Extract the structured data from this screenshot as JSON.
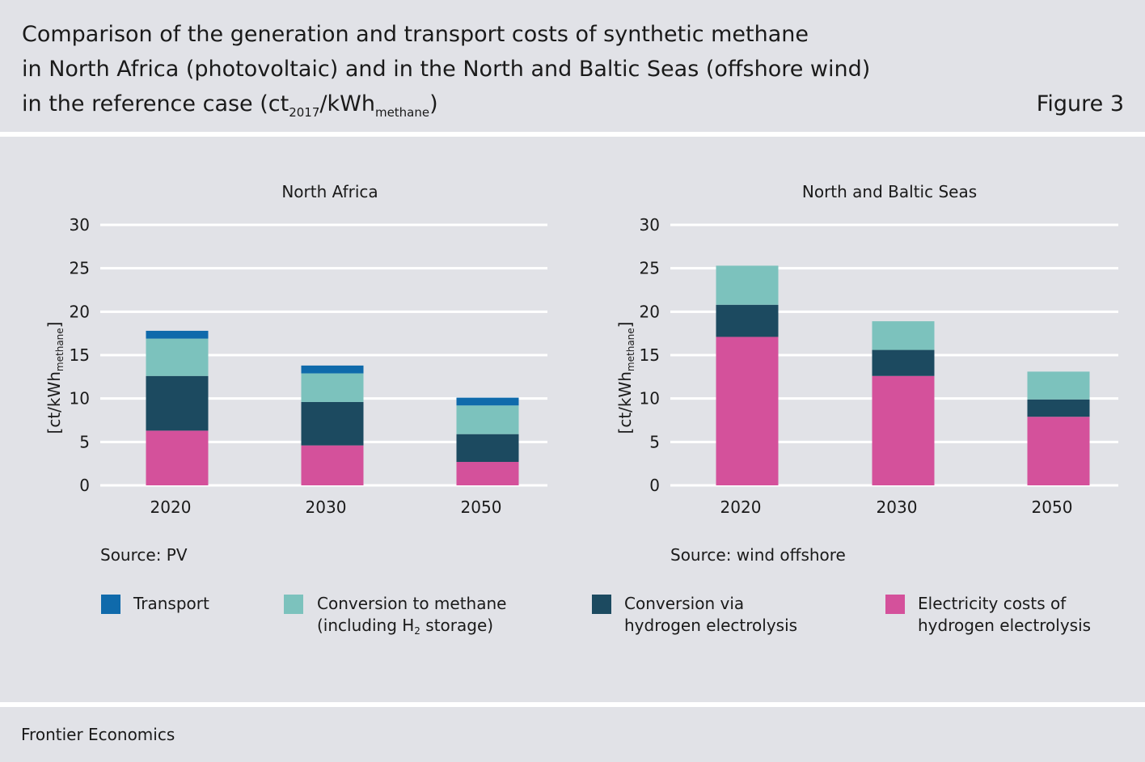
{
  "header": {
    "title_line1": "Comparison of the generation and transport costs of synthetic methane",
    "title_line2": "in North Africa (photovoltaic) and in the North and Baltic Seas (offshore wind)",
    "title_line3_pre": "in the reference case (ct",
    "title_line3_sub1": "2017",
    "title_line3_mid": "/kWh",
    "title_line3_sub2": "methane",
    "title_line3_post": ")",
    "figure_label": "Figure 3"
  },
  "colors": {
    "transport": "#0f6aab",
    "conversion_methane": "#7cc2bd",
    "conversion_hydrogen": "#1c4a60",
    "electricity": "#d4519b",
    "background": "#e1e2e7",
    "gridline": "#ffffff"
  },
  "chart_data": [
    {
      "type": "bar",
      "stacked": true,
      "title": "North Africa",
      "ylabel_main": "[ct/kWh",
      "ylabel_sub": "methane",
      "ylabel_end": "]",
      "ylim": [
        0,
        30
      ],
      "yticks": [
        0,
        5,
        10,
        15,
        20,
        25,
        30
      ],
      "categories": [
        "2020",
        "2030",
        "2050"
      ],
      "source": "Source: PV",
      "series": [
        {
          "name": "Electricity costs of hydrogen electrolysis",
          "key": "electricity",
          "values": [
            6.3,
            4.6,
            2.7
          ]
        },
        {
          "name": "Conversion via hydrogen electrolysis",
          "key": "conversion_hydrogen",
          "values": [
            6.3,
            5.0,
            3.2
          ]
        },
        {
          "name": "Conversion to methane (including H2 storage)",
          "key": "conversion_methane",
          "values": [
            4.3,
            3.3,
            3.3
          ]
        },
        {
          "name": "Transport",
          "key": "transport",
          "values": [
            0.9,
            0.9,
            0.9
          ]
        }
      ]
    },
    {
      "type": "bar",
      "stacked": true,
      "title": "North and Baltic Seas",
      "ylabel_main": "[ct/kWh",
      "ylabel_sub": "methane",
      "ylabel_end": "]",
      "ylim": [
        0,
        30
      ],
      "yticks": [
        0,
        5,
        10,
        15,
        20,
        25,
        30
      ],
      "categories": [
        "2020",
        "2030",
        "2050"
      ],
      "source": "Source: wind offshore",
      "series": [
        {
          "name": "Electricity costs of hydrogen electrolysis",
          "key": "electricity",
          "values": [
            17.1,
            12.6,
            7.9
          ]
        },
        {
          "name": "Conversion via hydrogen electrolysis",
          "key": "conversion_hydrogen",
          "values": [
            3.7,
            3.0,
            2.0
          ]
        },
        {
          "name": "Conversion to methane (including H2 storage)",
          "key": "conversion_methane",
          "values": [
            4.5,
            3.3,
            3.2
          ]
        },
        {
          "name": "Transport",
          "key": "transport",
          "values": [
            0,
            0,
            0
          ]
        }
      ]
    }
  ],
  "legend": {
    "transport": "Transport",
    "conversion_methane_l1": "Conversion to methane",
    "conversion_methane_l2_pre": "(including H",
    "conversion_methane_l2_sub": "2",
    "conversion_methane_l2_post": " storage)",
    "conversion_hydrogen_l1": "Conversion via",
    "conversion_hydrogen_l2": "hydrogen electrolysis",
    "electricity_l1": "Electricity costs of",
    "electricity_l2": "hydrogen electrolysis"
  },
  "footer": {
    "text": "Frontier Economics"
  }
}
